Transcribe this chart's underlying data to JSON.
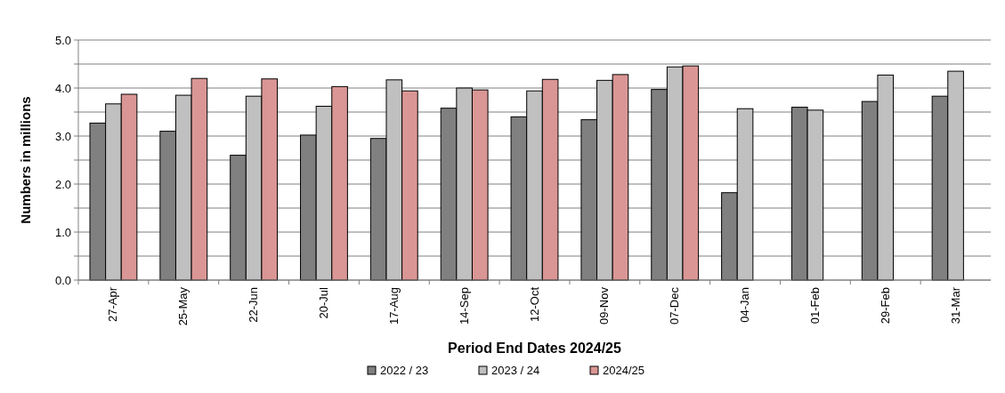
{
  "chart_data": {
    "type": "bar",
    "xlabel": "Period End Dates 2024/25",
    "ylabel": "Numbers in millions",
    "categories": [
      "27-Apr",
      "25-May",
      "22-Jun",
      "20-Jul",
      "17-Aug",
      "14-Sep",
      "12-Oct",
      "09-Nov",
      "07-Dec",
      "04-Jan",
      "01-Feb",
      "29-Feb",
      "31-Mar"
    ],
    "series": [
      {
        "name": "2022 / 23",
        "color": "#808080",
        "values": [
          3.27,
          3.1,
          2.6,
          3.02,
          2.95,
          3.58,
          3.4,
          3.34,
          3.97,
          1.82,
          3.6,
          3.72,
          3.83
        ]
      },
      {
        "name": "2023 / 24",
        "color": "#c0c0c0",
        "values": [
          3.67,
          3.85,
          3.83,
          3.62,
          4.17,
          4.0,
          3.94,
          4.16,
          4.44,
          3.57,
          3.54,
          4.27,
          4.35
        ]
      },
      {
        "name": "2024/25",
        "color": "#da9694",
        "values": [
          3.87,
          4.2,
          4.19,
          4.03,
          3.94,
          3.96,
          4.18,
          4.28,
          4.46,
          null,
          null,
          null,
          null
        ]
      }
    ],
    "ylim": [
      0,
      5
    ],
    "yticks": [
      {
        "value": 0,
        "label": "0.0"
      },
      {
        "value": 0.5,
        "label": null
      },
      {
        "value": 1,
        "label": "1.0"
      },
      {
        "value": 1.5,
        "label": null
      },
      {
        "value": 2,
        "label": "2.0"
      },
      {
        "value": 2.5,
        "label": null
      },
      {
        "value": 3,
        "label": "3.0"
      },
      {
        "value": 3.5,
        "label": null
      },
      {
        "value": 4,
        "label": "4.0"
      },
      {
        "value": 4.5,
        "label": null
      },
      {
        "value": 5,
        "label": "5.0"
      }
    ],
    "grid": "y",
    "legend": "bottom"
  }
}
